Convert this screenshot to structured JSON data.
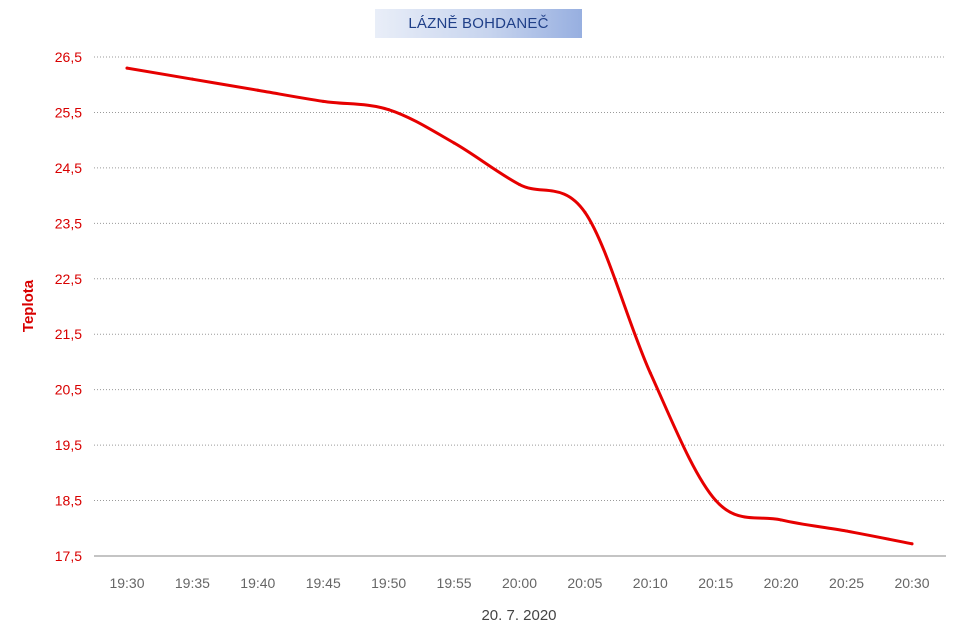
{
  "chart_data": {
    "type": "line",
    "title": "LÁZNĚ BOHDANEČ",
    "xlabel": "20. 7. 2020",
    "ylabel": "Teplota",
    "x": [
      "19:30",
      "19:35",
      "19:40",
      "19:45",
      "19:50",
      "19:55",
      "20:00",
      "20:05",
      "20:10",
      "20:15",
      "20:20",
      "20:25",
      "20:30"
    ],
    "ylim": [
      17.5,
      26.5
    ],
    "yticks": [
      "26,5",
      "25,5",
      "24,5",
      "23,5",
      "22,5",
      "21,5",
      "20,5",
      "19,5",
      "18,5",
      "17,5"
    ],
    "grid": true,
    "series": [
      {
        "values": [
          26.3,
          26.1,
          25.9,
          25.7,
          25.55,
          24.95,
          24.2,
          23.7,
          20.8,
          18.5,
          18.15,
          17.95,
          17.72
        ],
        "color": "#e60000"
      }
    ]
  }
}
